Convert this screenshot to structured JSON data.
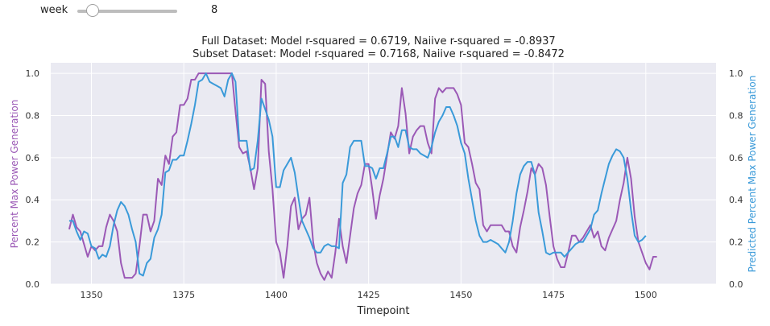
{
  "widget": {
    "label": "week",
    "value": "8",
    "slider_fraction": 0.12
  },
  "chart_data": {
    "type": "line",
    "title": [
      "Full Dataset:  Model r-squared = 0.6719, Naiive r-squared = -0.8937",
      "Subset Dataset:  Model r-squared = 0.7168, Naiive r-squared = -0.8472"
    ],
    "xlabel": "Timepoint",
    "ylabel_left": "Percent Max Power Generation",
    "ylabel_right": "Predicted Percent Max Power Generation",
    "xlim": [
      1339,
      1519
    ],
    "ylim": [
      0,
      1.05
    ],
    "xticks": [
      1350,
      1375,
      1400,
      1425,
      1450,
      1475,
      1500
    ],
    "yticks": [
      0.0,
      0.2,
      0.4,
      0.6,
      0.8,
      1.0
    ],
    "grid": true,
    "x_start": 1344,
    "series": [
      {
        "axis": "left",
        "color": "#9b59b6",
        "values": [
          0.26,
          0.33,
          0.27,
          0.25,
          0.19,
          0.13,
          0.18,
          0.16,
          0.18,
          0.18,
          0.27,
          0.33,
          0.3,
          0.25,
          0.1,
          0.03,
          0.03,
          0.03,
          0.05,
          0.18,
          0.33,
          0.33,
          0.25,
          0.3,
          0.5,
          0.47,
          0.61,
          0.57,
          0.7,
          0.72,
          0.85,
          0.85,
          0.88,
          0.97,
          0.97,
          1.0,
          1.0,
          1.0,
          1.0,
          1.0,
          1.0,
          1.0,
          1.0,
          1.0,
          1.0,
          0.82,
          0.65,
          0.62,
          0.63,
          0.55,
          0.45,
          0.55,
          0.97,
          0.95,
          0.63,
          0.45,
          0.2,
          0.15,
          0.03,
          0.18,
          0.37,
          0.41,
          0.26,
          0.31,
          0.33,
          0.41,
          0.2,
          0.1,
          0.05,
          0.02,
          0.06,
          0.03,
          0.15,
          0.31,
          0.18,
          0.1,
          0.23,
          0.36,
          0.43,
          0.47,
          0.57,
          0.57,
          0.45,
          0.31,
          0.42,
          0.5,
          0.61,
          0.72,
          0.69,
          0.75,
          0.93,
          0.81,
          0.62,
          0.7,
          0.73,
          0.75,
          0.75,
          0.67,
          0.62,
          0.88,
          0.93,
          0.91,
          0.93,
          0.93,
          0.93,
          0.9,
          0.85,
          0.67,
          0.65,
          0.57,
          0.48,
          0.45,
          0.28,
          0.25,
          0.28,
          0.28,
          0.28,
          0.28,
          0.25,
          0.25,
          0.18,
          0.15,
          0.27,
          0.35,
          0.44,
          0.55,
          0.52,
          0.57,
          0.55,
          0.47,
          0.32,
          0.18,
          0.12,
          0.08,
          0.08,
          0.15,
          0.23,
          0.23,
          0.2,
          0.22,
          0.25,
          0.28,
          0.22,
          0.25,
          0.18,
          0.16,
          0.22,
          0.26,
          0.3,
          0.4,
          0.48,
          0.6,
          0.5,
          0.32,
          0.2,
          0.15,
          0.1,
          0.07,
          0.13,
          0.13
        ]
      },
      {
        "axis": "right",
        "color": "#3a9ad9",
        "values": [
          0.3,
          0.3,
          0.25,
          0.21,
          0.25,
          0.24,
          0.18,
          0.17,
          0.12,
          0.14,
          0.13,
          0.18,
          0.28,
          0.35,
          0.39,
          0.37,
          0.33,
          0.26,
          0.2,
          0.05,
          0.04,
          0.1,
          0.12,
          0.22,
          0.26,
          0.33,
          0.53,
          0.54,
          0.59,
          0.59,
          0.61,
          0.61,
          0.68,
          0.76,
          0.85,
          0.96,
          0.97,
          1.0,
          0.96,
          0.95,
          0.94,
          0.93,
          0.89,
          0.97,
          1.0,
          0.96,
          0.68,
          0.68,
          0.68,
          0.54,
          0.55,
          0.68,
          0.88,
          0.83,
          0.78,
          0.7,
          0.46,
          0.46,
          0.54,
          0.57,
          0.6,
          0.53,
          0.41,
          0.3,
          0.26,
          0.22,
          0.17,
          0.15,
          0.15,
          0.18,
          0.19,
          0.18,
          0.18,
          0.17,
          0.48,
          0.52,
          0.65,
          0.68,
          0.68,
          0.68,
          0.56,
          0.56,
          0.55,
          0.5,
          0.55,
          0.55,
          0.62,
          0.7,
          0.7,
          0.65,
          0.73,
          0.73,
          0.65,
          0.64,
          0.64,
          0.62,
          0.61,
          0.6,
          0.65,
          0.72,
          0.77,
          0.8,
          0.84,
          0.84,
          0.8,
          0.75,
          0.67,
          0.62,
          0.5,
          0.4,
          0.3,
          0.23,
          0.2,
          0.2,
          0.21,
          0.2,
          0.19,
          0.17,
          0.15,
          0.2,
          0.3,
          0.43,
          0.52,
          0.56,
          0.58,
          0.58,
          0.52,
          0.34,
          0.25,
          0.15,
          0.14,
          0.15,
          0.15,
          0.15,
          0.13,
          0.15,
          0.17,
          0.19,
          0.2,
          0.2,
          0.23,
          0.26,
          0.33,
          0.35,
          0.43,
          0.5,
          0.57,
          0.61,
          0.64,
          0.63,
          0.6,
          0.5,
          0.35,
          0.23,
          0.2,
          0.21,
          0.23
        ]
      }
    ]
  }
}
